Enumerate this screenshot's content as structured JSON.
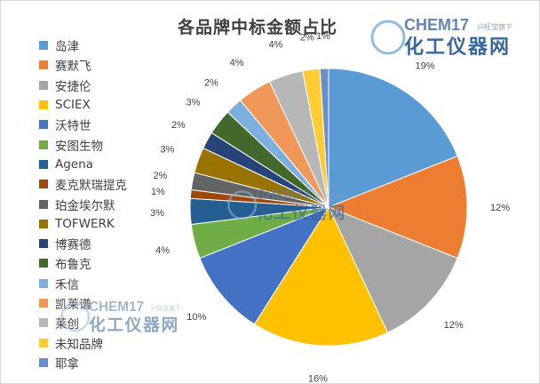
{
  "chart_data": {
    "type": "pie",
    "title": "各品牌中标金额占比",
    "legend_position": "left",
    "slices": [
      {
        "name": "岛津",
        "label": "19%",
        "value": 19,
        "color": "#5b9bd5"
      },
      {
        "name": "赛默飞",
        "label": "12%",
        "value": 12,
        "color": "#ed7d31"
      },
      {
        "name": "安捷伦",
        "label": "12%",
        "value": 12,
        "color": "#a5a5a5"
      },
      {
        "name": "SCIEX",
        "label": "16%",
        "value": 16,
        "color": "#ffc000"
      },
      {
        "name": "沃特世",
        "label": "10%",
        "value": 10,
        "color": "#4472c4"
      },
      {
        "name": "安图生物",
        "label": "4%",
        "value": 4,
        "color": "#70ad47"
      },
      {
        "name": "Agena",
        "label": "3%",
        "value": 3,
        "color": "#255e91"
      },
      {
        "name": "麦克默瑞提克",
        "label": "1%",
        "value": 1,
        "color": "#9e480e"
      },
      {
        "name": "珀金埃尔默",
        "label": "2%",
        "value": 2,
        "color": "#636363"
      },
      {
        "name": "TOFWERK",
        "label": "3%",
        "value": 3,
        "color": "#997300"
      },
      {
        "name": "博赛德",
        "label": "2%",
        "value": 2,
        "color": "#264478"
      },
      {
        "name": "布鲁克",
        "label": "3%",
        "value": 3,
        "color": "#43682b"
      },
      {
        "name": "禾信",
        "label": "2%",
        "value": 2,
        "color": "#7cafdd"
      },
      {
        "name": "凯莱谱",
        "label": "4%",
        "value": 4,
        "color": "#f1975a"
      },
      {
        "name": "莱创",
        "label": "4%",
        "value": 4,
        "color": "#b7b7b7"
      },
      {
        "name": "未知品牌",
        "label": "2%",
        "value": 2,
        "color": "#ffcd33"
      },
      {
        "name": "耶拿",
        "label": "1%",
        "value": 1,
        "color": "#698ed0"
      }
    ]
  },
  "watermarks": [
    {
      "brand": "CHEM17",
      "tagline": "兴旺宝旗下",
      "name": "化工仪器网"
    },
    {
      "brand": "CHEM17",
      "tagline": "兴旺宝旗下",
      "name": "化工仪器网"
    },
    {
      "brand": "CHEM17",
      "tagline": "兴旺宝旗下",
      "name": "化工仪器网"
    }
  ]
}
